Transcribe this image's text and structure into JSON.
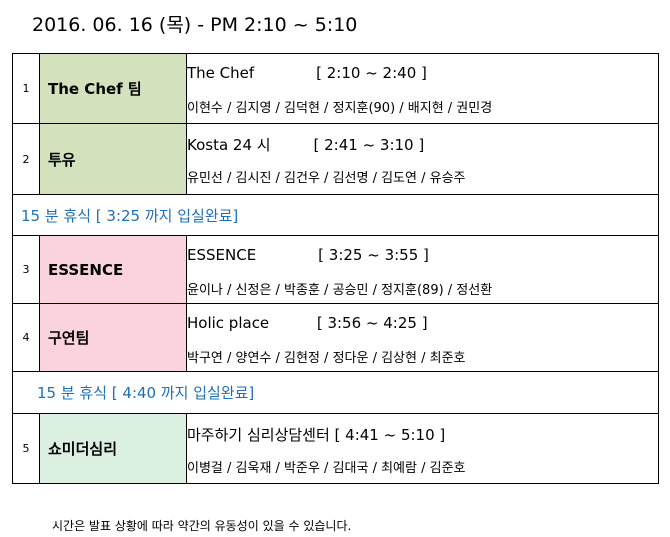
{
  "title": "2016. 06. 16 (목)  - PM 2:10 ~ 5:10",
  "rows": [
    {
      "num": "1",
      "team": "The Chef 팀",
      "session": "The Chef             [ 2:10 ~ 2:40 ]",
      "members": "이현수 / 김지영 / 김덕현 / 정지훈(90) / 배지현 / 권민경"
    },
    {
      "num": "2",
      "team": "투유",
      "session": "Kosta 24 시         [ 2:41 ~ 3:10 ]",
      "members": "유민선 / 김시진 / 김건우 / 김선명 / 김도연 / 유승주"
    },
    {
      "num": "3",
      "team": "ESSENCE",
      "session": "ESSENCE             [ 3:25 ~ 3:55 ]",
      "members": "윤이나 / 신정은 / 박종훈 / 공승민 / 정지훈(89) / 정선환"
    },
    {
      "num": "4",
      "team": "구연팀",
      "session": "Holic place          [ 3:56 ~ 4:25 ]",
      "members": "박구연 / 양연수 / 김현정 / 정다운 / 김상현 / 최준호"
    },
    {
      "num": "5",
      "team": "쇼미더심리",
      "session": "마주하기 심리상담센터 [ 4:41 ~ 5:10 ]",
      "members": "이병걸 / 김욱재 / 박준우 / 김대국 / 최예람 / 김준호"
    }
  ],
  "breaks": [
    "15 분 휴식 [ 3:25 까지 입실완료]",
    "15 분 휴식 [ 4:40 까지 입실완료]"
  ],
  "footnote": "시간은 발표 상황에 따라 약간의 유동성이 있을 수 있습니다.",
  "colors": {
    "team_green": "#d3e2bd",
    "team_pink": "#fbd3dc",
    "team_mint": "#dcf0e2",
    "break_text": "#1f6fb5"
  }
}
